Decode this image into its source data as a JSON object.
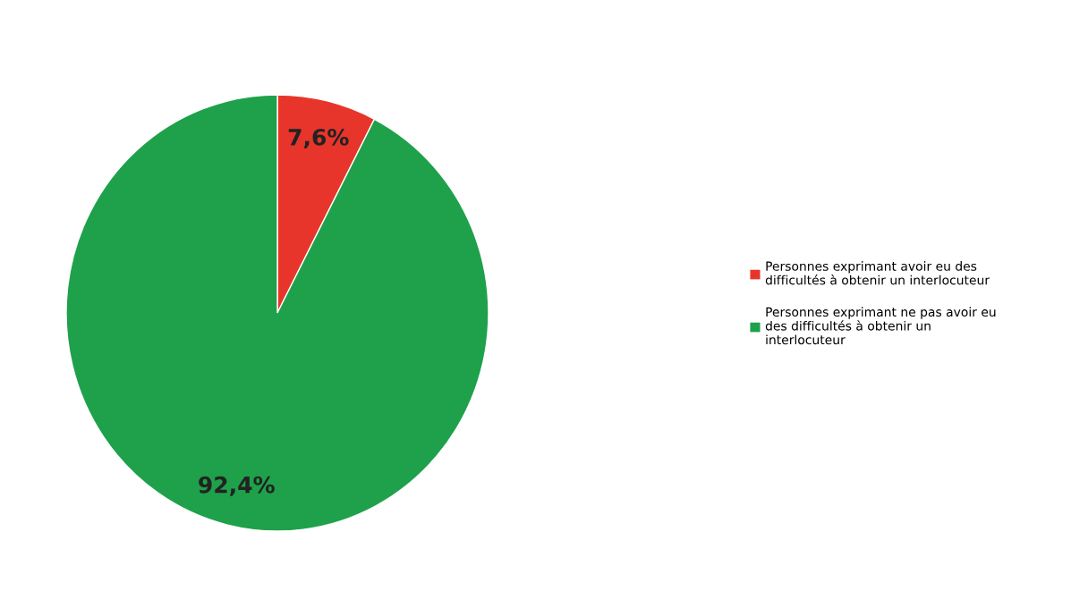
{
  "chart_data": {
    "type": "pie",
    "categories": [
      "Personnes exprimant avoir eu des\ndifficultés à obtenir un interlocuteur",
      "Personnes exprimant ne pas avoir eu\ndes difficultés à obtenir un\ninterlocuteur"
    ],
    "values": [
      7.6,
      92.4
    ],
    "colors": [
      "#e8352b",
      "#1ea14a"
    ],
    "value_labels": [
      "7,6%",
      "92,4%"
    ],
    "legend": "right"
  }
}
